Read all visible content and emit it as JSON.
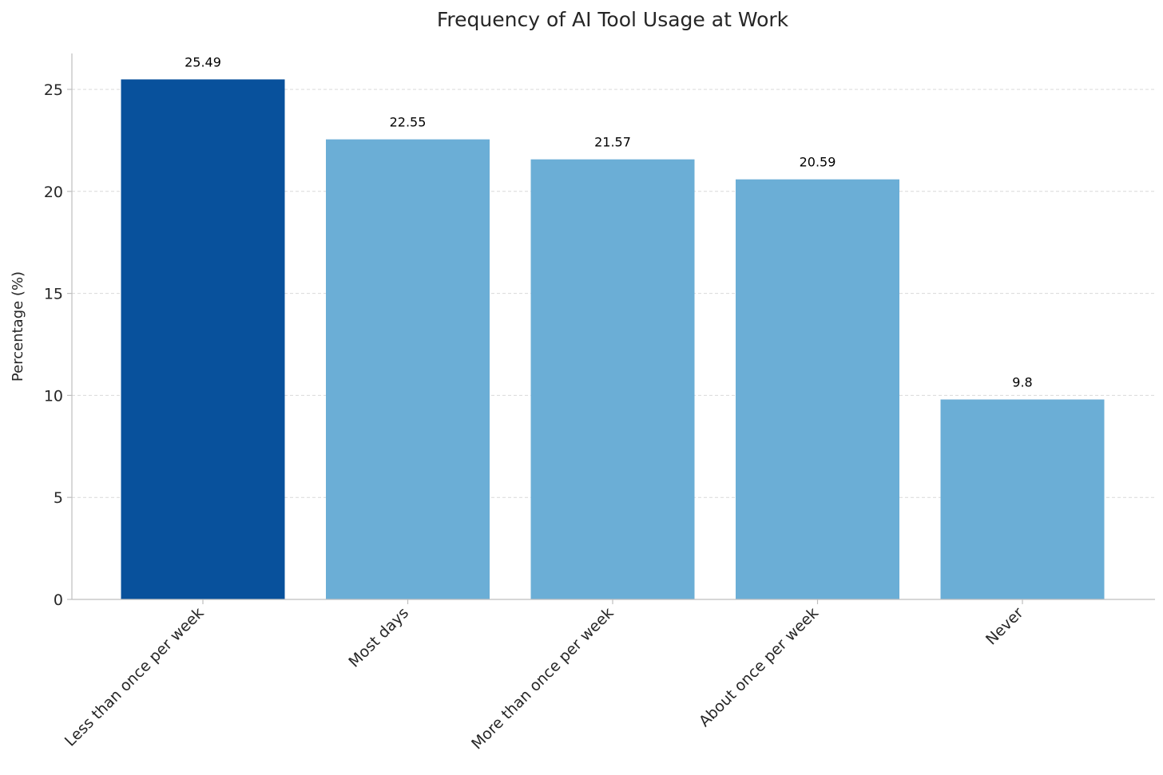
{
  "chart_data": {
    "type": "bar",
    "title": "Frequency of AI Tool Usage at Work",
    "xlabel": "",
    "ylabel": "Percentage (%)",
    "categories": [
      "Less than once per week",
      "Most days",
      "More than once per week",
      "About once per week",
      "Never"
    ],
    "values": [
      25.49,
      22.55,
      21.57,
      20.59,
      9.8
    ],
    "value_labels": [
      "25.49",
      "22.55",
      "21.57",
      "20.59",
      "9.8"
    ],
    "highlight_index": 0,
    "colors": {
      "highlight": "#08519c",
      "default": "#6baed6",
      "grid": "#d9d9d9",
      "axis": "#bfbfbf",
      "text": "#262626"
    },
    "yticks": [
      0,
      5,
      10,
      15,
      20,
      25
    ],
    "ylim": [
      0,
      26.76
    ],
    "grid": true,
    "grid_style": "dashed",
    "legend": "none"
  }
}
